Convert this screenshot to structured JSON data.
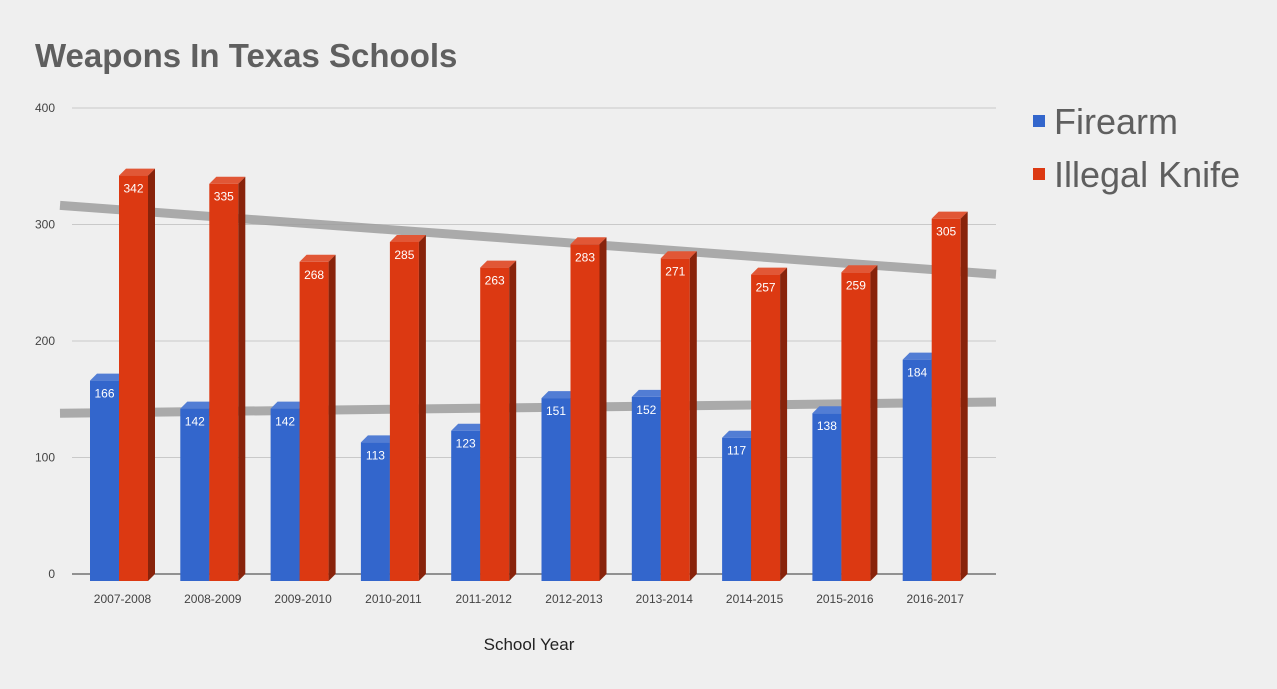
{
  "chart_data": {
    "type": "bar",
    "title": "Weapons In Texas Schools",
    "xlabel": "School Year",
    "ylabel": "",
    "ylim": [
      0,
      400
    ],
    "yticks": [
      0,
      100,
      200,
      300,
      400
    ],
    "categories": [
      "2007-2008",
      "2008-2009",
      "2009-2010",
      "2010-2011",
      "2011-2012",
      "2012-2013",
      "2013-2014",
      "2014-2015",
      "2015-2016",
      "2016-2017"
    ],
    "series": [
      {
        "name": "Firearm",
        "color": "#3366cc",
        "values": [
          166,
          142,
          142,
          113,
          123,
          151,
          152,
          117,
          138,
          184
        ]
      },
      {
        "name": "Illegal Knife",
        "color": "#dc3912",
        "values": [
          342,
          335,
          268,
          285,
          263,
          283,
          271,
          257,
          259,
          305
        ]
      }
    ],
    "trendlines": true,
    "trendline_color": "#9e9e9e",
    "data_labels": true,
    "grid": true,
    "legend_position": "right",
    "style_3d": true
  }
}
